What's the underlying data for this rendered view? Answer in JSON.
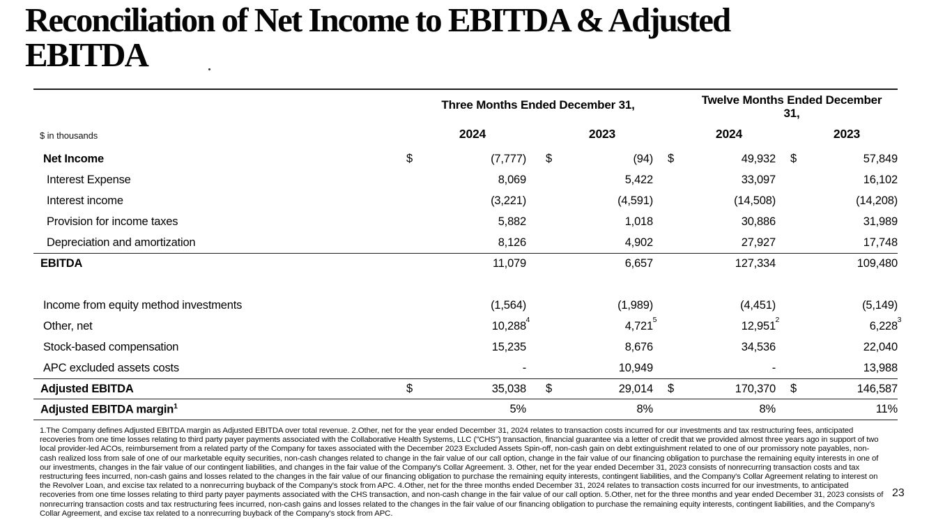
{
  "title": {
    "line1": "Reconciliation of Net Income to EBITDA & Adjusted",
    "line2": "EBITDA"
  },
  "page_number": "23",
  "colors": {
    "background": "#ffffff",
    "text": "#000000",
    "rule": "#1b1b1b"
  },
  "table": {
    "units_label": "$ in thousands",
    "col_groups": [
      {
        "label": "Three Months Ended December 31,"
      },
      {
        "label": "Twelve Months Ended December 31,"
      }
    ],
    "year_headers": [
      "2024",
      "2023",
      "2024",
      "2023"
    ],
    "rows": [
      {
        "label": "Net Income",
        "bold": true,
        "indent": 1,
        "dollar": true,
        "values": [
          "(7,777)",
          "(94)",
          "49,932",
          "57,849"
        ]
      },
      {
        "label": "Interest Expense",
        "indent": 2,
        "values": [
          "8,069",
          "5,422",
          "33,097",
          "16,102"
        ]
      },
      {
        "label": "Interest income",
        "indent": 2,
        "values": [
          "(3,221)",
          "(4,591)",
          "(14,508)",
          "(14,208)"
        ]
      },
      {
        "label": "Provision for income taxes",
        "indent": 2,
        "values": [
          "5,882",
          "1,018",
          "30,886",
          "31,989"
        ]
      },
      {
        "label": "Depreciation and amortization",
        "indent": 2,
        "values": [
          "8,126",
          "4,902",
          "27,927",
          "17,748"
        ]
      },
      {
        "label": "EBITDA",
        "bold": true,
        "indent": 0,
        "rule_above": true,
        "values": [
          "11,079",
          "6,657",
          "127,334",
          "109,480"
        ]
      },
      {
        "spacer": true,
        "label": "",
        "values": [
          "",
          "",
          "",
          ""
        ]
      },
      {
        "label": "Income from equity method investments",
        "indent": 1,
        "values": [
          "(1,564)",
          "(1,989)",
          "(4,451)",
          "(5,149)"
        ]
      },
      {
        "label": "Other, net",
        "indent": 1,
        "values": [
          "10,288",
          "4,721",
          "12,951",
          "6,228"
        ],
        "sups": [
          "4",
          "5",
          "2",
          "3"
        ]
      },
      {
        "label": "Stock-based compensation",
        "indent": 1,
        "values": [
          "15,235",
          "8,676",
          "34,536",
          "22,040"
        ]
      },
      {
        "label": "APC excluded assets costs",
        "indent": 1,
        "values": [
          "-",
          "10,949",
          "-",
          "13,988"
        ]
      },
      {
        "label": "Adjusted EBITDA",
        "bold": true,
        "indent": 0,
        "dollar": true,
        "rule_above": true,
        "rule_below": true,
        "values": [
          "35,038",
          "29,014",
          "170,370",
          "146,587"
        ]
      },
      {
        "label": "Adjusted EBITDA margin",
        "label_sup": "1",
        "bold": true,
        "indent": 0,
        "rule_below": true,
        "values": [
          "5%",
          "8%",
          "8%",
          "11%"
        ]
      }
    ]
  },
  "footnote": "1.The Company defines Adjusted EBITDA margin as Adjusted EBITDA over total revenue. 2.Other, net for the year ended December 31, 2024 relates to transaction costs incurred for our investments and tax restructuring fees, anticipated recoveries from one time losses relating to third party payer payments associated with the Collaborative Health Systems, LLC (\"CHS\") transaction, financial guarantee via a letter of credit that we provided almost three years ago in support of two local provider-led ACOs, reimbursement from a related party of the Company for taxes associated with the December 2023 Excluded Assets Spin-off, non-cash gain on debt extinguishment related to one of our promissory note payables, non-cash realized loss from sale of one of our marketable equity securities, non-cash changes related to change in the fair value of our call option, change in the fair value of our financing obligation to purchase the remaining equity interests in one of our investments, changes in the fair value of our contingent liabilities, and changes in the fair value of the Company's Collar Agreement. 3. Other, net for the year ended December 31, 2023 consists of nonrecurring transaction costs and tax restructuring fees incurred, non-cash gains and losses related to the changes in the fair value of our financing obligation to purchase the remaining equity interests, contingent liabilities, and the Company's Collar Agreement relating to interest on the Revolver Loan, and excise tax related to a nonrecurring buyback of the Company's stock from APC. 4.Other, net for the three months ended December 31, 2024 relates to transaction costs incurred for our investments, to anticipated recoveries from one time losses relating to third party payer payments associated with the CHS transaction, and non-cash change in the fair value of our call option.  5.Other, net for the three months and year ended December 31, 2023 consists of nonrecurring transaction costs and tax restructuring fees incurred, non-cash gains and losses related to the changes in the fair value of our financing obligation to purchase the remaining equity interests, contingent liabilities, and the Company's Collar Agreement, and excise tax related to a nonrecurring buyback of the Company's stock from APC."
}
